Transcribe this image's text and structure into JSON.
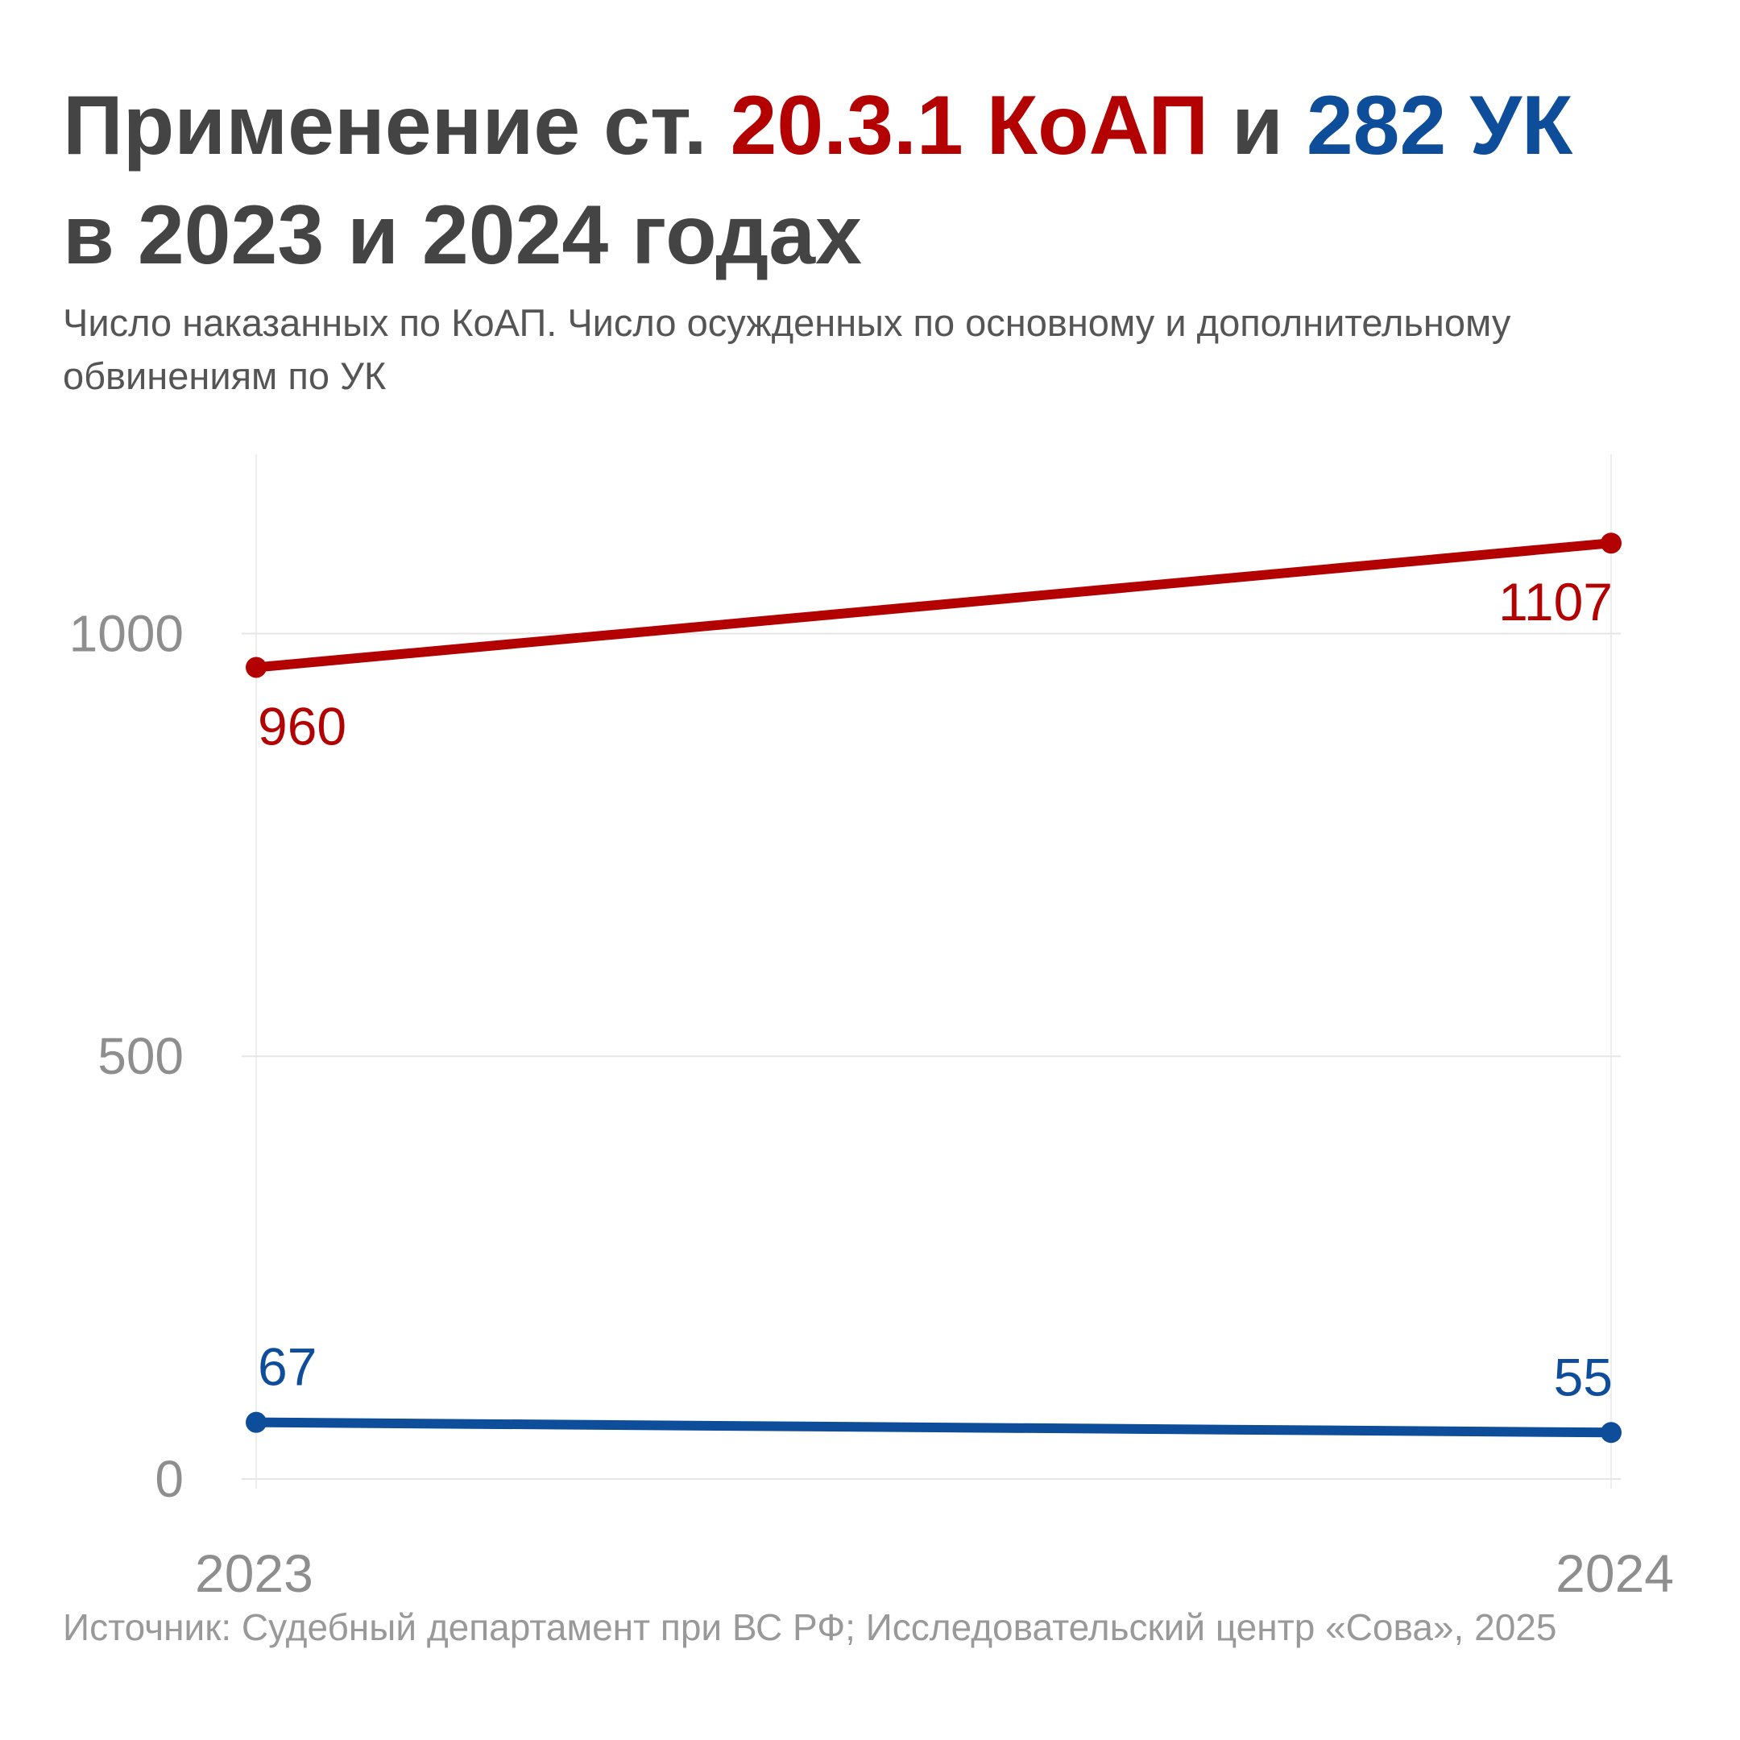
{
  "title": {
    "part1": "Применение ст. ",
    "part2": "20.3.1 КоАП",
    "part3": " и ",
    "part4": "282 УК",
    "part5": "в 2023 и 2024 годах"
  },
  "subtitle": "Число наказанных по КоАП. Число осужденных по основному и дополнительному обвинениям по УК",
  "source": "Источник: Судебный департамент при ВС РФ; Исследовательский центр «Сова», 2025",
  "colors": {
    "red": "#b30000",
    "blue": "#0d4d99",
    "title_text": "#444444",
    "grid": "#e6e6e6",
    "axis_text": "#8e8e8e"
  },
  "chart_data": {
    "type": "line",
    "x": [
      "2023",
      "2024"
    ],
    "series": [
      {
        "name": "20.3.1 КоАП",
        "values": [
          960,
          1107
        ],
        "color": "#b30000"
      },
      {
        "name": "282 УК",
        "values": [
          67,
          55
        ],
        "color": "#0d4d99"
      }
    ],
    "yticks": [
      0,
      500,
      1000
    ],
    "ylim": [
      0,
      1212
    ],
    "grid": true,
    "legend": "none"
  }
}
